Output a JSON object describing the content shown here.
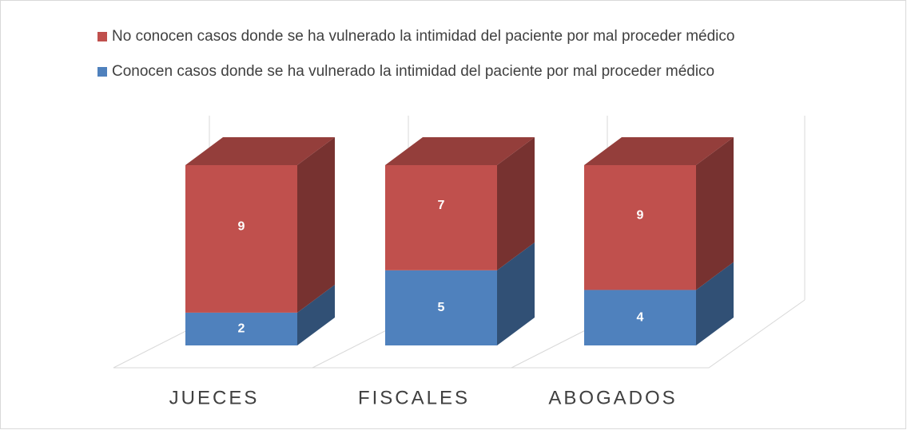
{
  "chart_data": {
    "type": "bar",
    "stacking": "percent",
    "categories": [
      "JUECES",
      "FISCALES",
      "ABOGADOS"
    ],
    "series": [
      {
        "name": "Conocen casos donde se ha vulnerado la intimidad del paciente por mal proceder médico",
        "color": "#4f81bd",
        "values": [
          2,
          5,
          4
        ]
      },
      {
        "name": "No conocen casos donde se ha vulnerado la intimidad del paciente por mal proceder médico",
        "color": "#c0504d",
        "values": [
          9,
          7,
          9
        ]
      }
    ],
    "legend": "top"
  }
}
